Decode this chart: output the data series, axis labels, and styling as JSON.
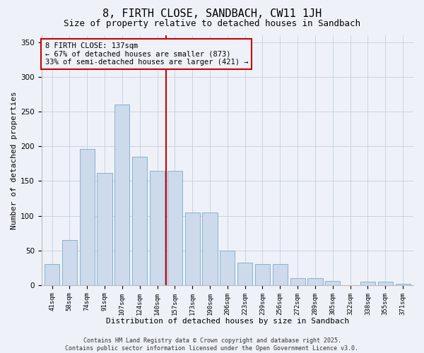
{
  "title": "8, FIRTH CLOSE, SANDBACH, CW11 1JH",
  "subtitle": "Size of property relative to detached houses in Sandbach",
  "xlabel": "Distribution of detached houses by size in Sandbach",
  "ylabel": "Number of detached properties",
  "categories": [
    "41sqm",
    "58sqm",
    "74sqm",
    "91sqm",
    "107sqm",
    "124sqm",
    "140sqm",
    "157sqm",
    "173sqm",
    "190sqm",
    "206sqm",
    "223sqm",
    "239sqm",
    "256sqm",
    "272sqm",
    "289sqm",
    "305sqm",
    "322sqm",
    "338sqm",
    "355sqm",
    "371sqm"
  ],
  "values": [
    30,
    65,
    196,
    162,
    260,
    185,
    165,
    165,
    105,
    105,
    50,
    32,
    30,
    30,
    10,
    10,
    6,
    0,
    5,
    5,
    2
  ],
  "bar_color": "#ccdaeb",
  "bar_edge_color": "#7aaac8",
  "vline_color": "#cc0000",
  "annotation_text": "8 FIRTH CLOSE: 137sqm\n← 67% of detached houses are smaller (873)\n33% of semi-detached houses are larger (421) →",
  "annotation_box_color": "#cc0000",
  "annotation_fontsize": 7.5,
  "ylim": [
    0,
    360
  ],
  "yticks": [
    0,
    50,
    100,
    150,
    200,
    250,
    300,
    350
  ],
  "title_fontsize": 11,
  "subtitle_fontsize": 9,
  "footer_text": "Contains HM Land Registry data © Crown copyright and database right 2025.\nContains public sector information licensed under the Open Government Licence v3.0.",
  "grid_color": "#c8d4e0",
  "background_color": "#eef2f8"
}
